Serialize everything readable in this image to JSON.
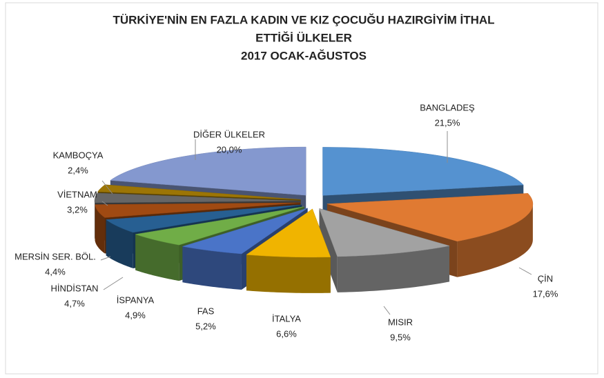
{
  "chart_data": {
    "type": "pie3d",
    "title": [
      "TÜRKİYE'NİN EN FAZLA KADIN VE KIZ ÇOCUĞU HAZIRGİYİM İTHAL",
      "ETTİĞİ ÜLKELER",
      "2017 OCAK-AĞUSTOS"
    ],
    "categories": [
      "BANGLADEŞ",
      "ÇİN",
      "MISIR",
      "İTALYA",
      "FAS",
      "İSPANYA",
      "HİNDİSTAN",
      "MERSİN SER. BÖL.",
      "VİETNAM",
      "KAMBOÇYA",
      "DİĞER ÜLKELER"
    ],
    "values": [
      21.5,
      17.6,
      9.5,
      6.6,
      5.2,
      4.9,
      4.7,
      4.4,
      3.2,
      2.4,
      20.0
    ],
    "value_labels": [
      "21,5%",
      "17,6%",
      "9,5%",
      "6,6%",
      "5,2%",
      "4,9%",
      "4,7%",
      "4,4%",
      "3,2%",
      "2,4%",
      "20,0%"
    ],
    "colors": [
      "#5592d0",
      "#e07a32",
      "#a2a2a2",
      "#f0b400",
      "#4a74c8",
      "#70ad47",
      "#275f92",
      "#a04a12",
      "#666666",
      "#9c7505",
      "#8498cf"
    ]
  }
}
